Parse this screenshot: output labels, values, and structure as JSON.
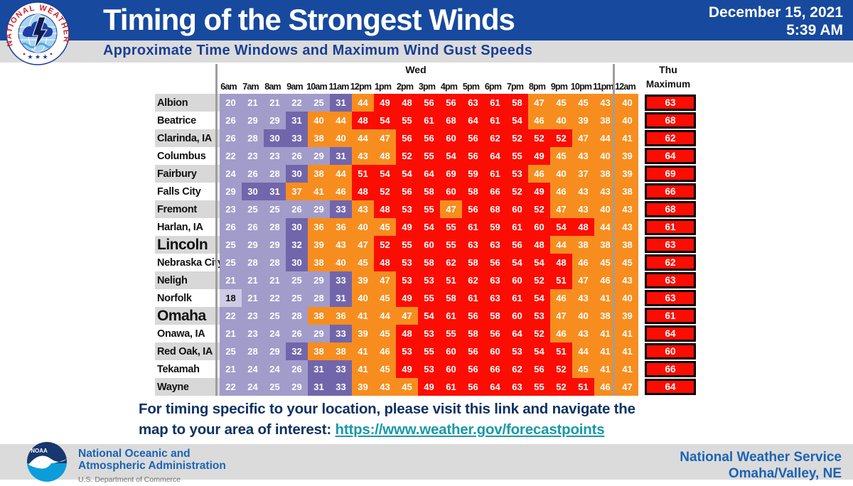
{
  "header": {
    "title": "Timing of the Strongest Winds",
    "subtitle": "Approximate Time Windows and Maximum Wind Gust Speeds",
    "date_line1": "December 15, 2021",
    "date_line2": "5:39 AM"
  },
  "chart_data": {
    "type": "heatmap",
    "title": "Timing of the Strongest Winds",
    "subtitle": "Approximate Time Windows and Maximum Wind Gust Speeds",
    "day_wed": "Wed",
    "day_thu": "Thu",
    "max_label": "Maximum",
    "columns": [
      "6am",
      "7am",
      "8am",
      "9am",
      "10am",
      "11am",
      "12pm",
      "1pm",
      "2pm",
      "3pm",
      "4pm",
      "5pm",
      "6pm",
      "7pm",
      "8pm",
      "9pm",
      "10pm",
      "11pm",
      "12am"
    ],
    "cell_colors": {
      "L": "#A29CCA",
      "D": "#7166AC",
      "O": "#F78D1E",
      "R": "#FB0D03",
      "W": "#CFCBE4"
    },
    "color_meaning": {
      "L": "light-purple low gust",
      "D": "dark-purple 30s",
      "O": "orange 36-47",
      "R": "red 48+ strongest",
      "W": "palest with dark text"
    },
    "rows": [
      {
        "name": "Albion",
        "big": false,
        "values": [
          20,
          21,
          21,
          22,
          25,
          31,
          44,
          49,
          48,
          56,
          56,
          63,
          61,
          58,
          47,
          45,
          45,
          43,
          40
        ],
        "colors": "LLLLLDORRRRRRROOOOO",
        "max": 63
      },
      {
        "name": "Beatrice",
        "big": false,
        "values": [
          26,
          29,
          29,
          31,
          40,
          44,
          48,
          54,
          55,
          61,
          68,
          64,
          61,
          54,
          46,
          40,
          39,
          38,
          40
        ],
        "colors": "LLLDOORRRRRRRROOOOO",
        "max": 68
      },
      {
        "name": "Clarinda, IA",
        "big": false,
        "values": [
          26,
          28,
          30,
          33,
          38,
          40,
          44,
          47,
          56,
          56,
          60,
          56,
          62,
          52,
          52,
          52,
          47,
          44,
          41
        ],
        "colors": "LLDDOOOORRRRRRRROOO",
        "max": 62
      },
      {
        "name": "Columbus",
        "big": false,
        "values": [
          22,
          23,
          23,
          26,
          29,
          31,
          43,
          48,
          52,
          55,
          54,
          56,
          64,
          55,
          49,
          45,
          43,
          40,
          39
        ],
        "colors": "LLLLLDOORRRRRRROOOO",
        "max": 64
      },
      {
        "name": "Fairbury",
        "big": false,
        "values": [
          24,
          26,
          28,
          30,
          38,
          44,
          51,
          54,
          54,
          64,
          69,
          59,
          61,
          53,
          46,
          40,
          37,
          38,
          39
        ],
        "colors": "LLLDOORRRRRRRROOOOO",
        "max": 69
      },
      {
        "name": "Falls City",
        "big": false,
        "values": [
          29,
          30,
          31,
          37,
          41,
          46,
          48,
          52,
          56,
          58,
          60,
          58,
          66,
          52,
          49,
          46,
          43,
          43,
          38
        ],
        "colors": "LDDOOORRRRRRRRROOOO",
        "max": 66
      },
      {
        "name": "Fremont",
        "big": false,
        "values": [
          23,
          25,
          25,
          26,
          29,
          33,
          43,
          48,
          53,
          55,
          47,
          56,
          68,
          60,
          52,
          47,
          43,
          40,
          43
        ],
        "colors": "LLLLLDORRRORRRROOOO",
        "max": 68
      },
      {
        "name": "Harlan, IA",
        "big": false,
        "values": [
          26,
          26,
          28,
          30,
          36,
          36,
          40,
          45,
          49,
          54,
          55,
          61,
          59,
          61,
          60,
          54,
          48,
          44,
          43
        ],
        "colors": "LLLDOOOORRRRRRRRROO",
        "max": 61
      },
      {
        "name": "Lincoln",
        "big": true,
        "values": [
          25,
          29,
          29,
          32,
          39,
          43,
          47,
          52,
          55,
          60,
          55,
          63,
          63,
          56,
          48,
          44,
          38,
          38,
          38
        ],
        "colors": "LLLDOOORRRRRRRROOOO",
        "max": 63
      },
      {
        "name": "Nebraska City",
        "big": false,
        "values": [
          25,
          28,
          28,
          30,
          38,
          40,
          45,
          48,
          53,
          58,
          62,
          58,
          56,
          54,
          54,
          48,
          46,
          45,
          45
        ],
        "colors": "LLLDOOORRRRRRRRROOO",
        "max": 62
      },
      {
        "name": "Neligh",
        "big": false,
        "values": [
          21,
          21,
          21,
          25,
          29,
          33,
          39,
          47,
          53,
          53,
          51,
          62,
          63,
          60,
          52,
          51,
          47,
          46,
          43
        ],
        "colors": "LLLLLDOORRRRRRRROOO",
        "max": 63
      },
      {
        "name": "Norfolk",
        "big": false,
        "values": [
          18,
          21,
          22,
          25,
          28,
          31,
          40,
          45,
          49,
          55,
          58,
          61,
          63,
          61,
          54,
          46,
          43,
          41,
          40
        ],
        "colors": "WLLLLDOORRRRRRROOOO",
        "max": 63
      },
      {
        "name": "Omaha",
        "big": true,
        "values": [
          22,
          23,
          25,
          28,
          38,
          36,
          41,
          44,
          47,
          54,
          61,
          56,
          58,
          60,
          53,
          47,
          40,
          38,
          39
        ],
        "colors": "LLLLOOOOORRRRRROOOO",
        "max": 61
      },
      {
        "name": "Onawa, IA",
        "big": false,
        "values": [
          21,
          23,
          24,
          26,
          29,
          33,
          39,
          45,
          48,
          53,
          55,
          58,
          56,
          64,
          52,
          46,
          43,
          41,
          41
        ],
        "colors": "LLLLLDOORRRRRRROOOO",
        "max": 64
      },
      {
        "name": "Red Oak, IA",
        "big": false,
        "values": [
          25,
          28,
          29,
          32,
          38,
          38,
          41,
          46,
          53,
          55,
          60,
          56,
          60,
          53,
          54,
          51,
          44,
          41,
          41
        ],
        "colors": "LLLDOOOORRRRRRRROOO",
        "max": 60
      },
      {
        "name": "Tekamah",
        "big": false,
        "values": [
          21,
          24,
          24,
          26,
          31,
          33,
          41,
          45,
          49,
          53,
          60,
          56,
          66,
          62,
          56,
          52,
          45,
          41,
          41
        ],
        "colors": "LLLLDDOORRRRRRRROOO",
        "max": 66
      },
      {
        "name": "Wayne",
        "big": false,
        "values": [
          22,
          24,
          25,
          29,
          31,
          33,
          39,
          43,
          45,
          49,
          61,
          56,
          64,
          63,
          55,
          52,
          51,
          46,
          47
        ],
        "colors": "LLLLDDOOORRRRRRRROO",
        "max": 64
      }
    ],
    "max_box_color": "#FB0D03",
    "legend_position": "none",
    "grid": false
  },
  "note": {
    "line1": "For timing specific to your location, please visit this link and navigate the",
    "line2_prefix": "map to your area of interest: ",
    "link_text": "https://www.weather.gov/forecastpoints"
  },
  "bottom": {
    "noaa_label": "NOAA",
    "noaa_line1": "National Oceanic and",
    "noaa_line2": "Atmospheric Administration",
    "noaa_line3": "U.S. Department of Commerce",
    "nws_line1": "National Weather Service",
    "nws_line2": "Omaha/Valley,  NE"
  },
  "colors": {
    "header_blue": "#17499E",
    "band_gray": "#DBDBDB",
    "subtitle_navy": "#1A3E94",
    "note_navy": "#0E3263",
    "link_teal": "#1899A9",
    "separator_gray": "#9E9E9E",
    "city_alt_gray": "#D8D8D8",
    "noaa_text_blue": "#1A64B5"
  }
}
